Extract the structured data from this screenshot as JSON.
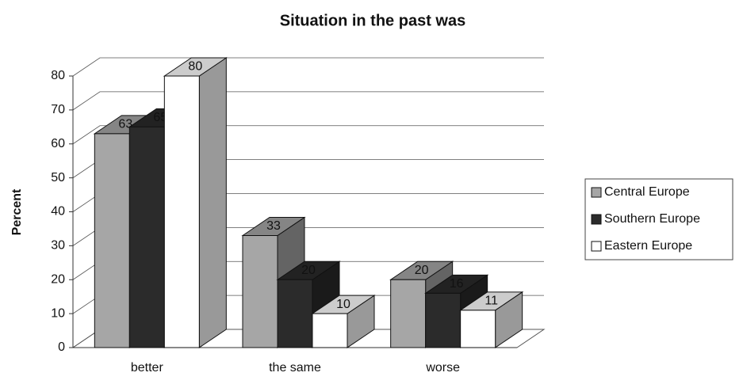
{
  "chart_data": {
    "type": "bar3d",
    "title": "Situation in the past was",
    "ylabel": "Percent",
    "categories": [
      "better",
      "the same",
      "worse"
    ],
    "series": [
      {
        "name": "Central Europe",
        "color": "#a6a6a6",
        "values": [
          63,
          33,
          20
        ]
      },
      {
        "name": "Southern Europe",
        "color": "#2b2b2b",
        "values": [
          65,
          20,
          16
        ]
      },
      {
        "name": "Eastern Europe",
        "color": "#ffffff",
        "values": [
          80,
          10,
          11
        ]
      }
    ],
    "ylim": [
      0,
      80
    ],
    "yticks": [
      0,
      10,
      20,
      30,
      40,
      50,
      60,
      70,
      80
    ],
    "grid": true,
    "legend": "right"
  }
}
